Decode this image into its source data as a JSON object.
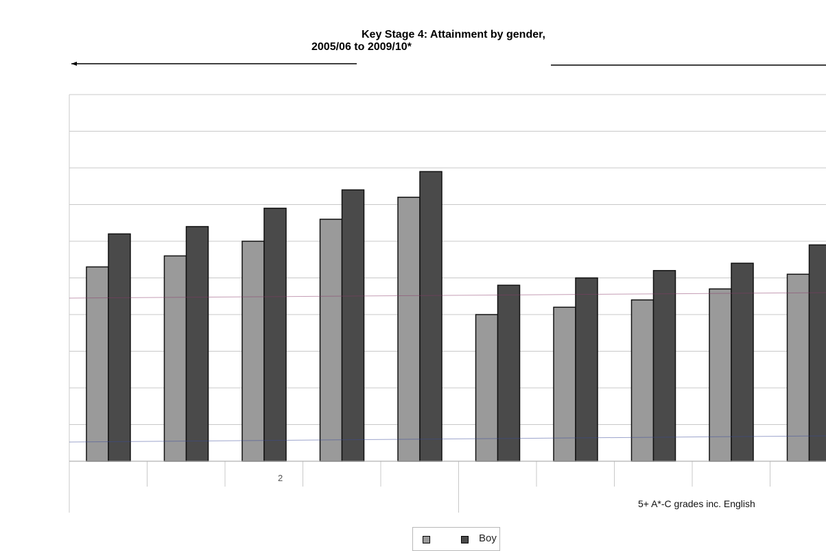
{
  "chart_data": {
    "type": "bar",
    "title_lines": [
      "Key Stage 4: Attainment by gender,",
      "2005/06 to 2009/10*"
    ],
    "categories": [
      "",
      "",
      "",
      "",
      "",
      "",
      "",
      "",
      "",
      ""
    ],
    "group_labels": [
      "",
      "5+ A*-C grades inc. English"
    ],
    "stray_tick_text": "2",
    "series": [
      {
        "name": "",
        "color": "#9a9a9a",
        "values": [
          5.3,
          5.6,
          6.0,
          6.6,
          7.2,
          4.0,
          4.2,
          4.4,
          4.7,
          5.1
        ]
      },
      {
        "name": "Boy",
        "color": "#4a4a4a",
        "values": [
          6.2,
          6.4,
          6.9,
          7.4,
          7.9,
          4.8,
          5.0,
          5.2,
          5.4,
          5.9
        ]
      }
    ],
    "ylim": [
      0,
      10
    ],
    "grid": true,
    "legend_position": "bottom"
  }
}
